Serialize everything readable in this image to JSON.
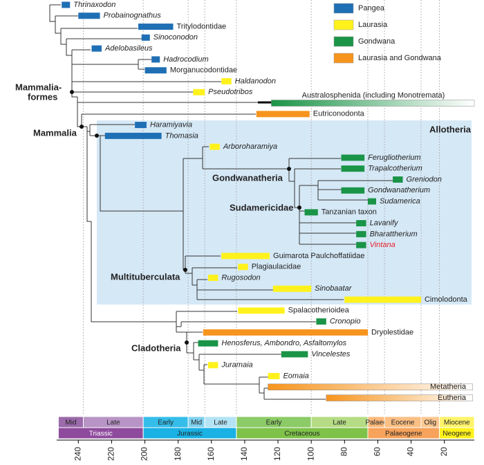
{
  "chart_data": {
    "type": "phylogeny",
    "xlim": [
      253,
      2
    ],
    "xticks": [
      240,
      220,
      200,
      180,
      160,
      140,
      120,
      100,
      80,
      60,
      40,
      20
    ],
    "regions": [
      {
        "name": "Pangea",
        "color": "#1f6fb5"
      },
      {
        "name": "Laurasia",
        "color": "#fff21c"
      },
      {
        "name": "Gondwana",
        "color": "#1a9447"
      },
      {
        "name": "Laurasia and Gondwana",
        "color": "#f7941d"
      }
    ],
    "taxa": [
      {
        "name": "Thrinaxodon",
        "region": 0,
        "range": [
          250,
          245
        ],
        "italic": true
      },
      {
        "name": "Probainognathus",
        "region": 0,
        "range": [
          240,
          227
        ],
        "italic": true
      },
      {
        "name": "Tritylodontidae",
        "region": 0,
        "range": [
          204,
          183
        ]
      },
      {
        "name": "Sinoconodon",
        "region": 0,
        "range": [
          202,
          197
        ],
        "italic": true
      },
      {
        "name": "Adelobasileus",
        "region": 0,
        "range": [
          232,
          226
        ],
        "italic": true
      },
      {
        "name": "Hadrocodium",
        "region": 0,
        "range": [
          196,
          191
        ],
        "italic": true
      },
      {
        "name": "Morganucodontidae",
        "region": 0,
        "range": [
          200,
          187
        ]
      },
      {
        "name": "Haldanodon",
        "region": 1,
        "range": [
          154,
          148
        ],
        "italic": true
      },
      {
        "name": "Pseudotribos",
        "region": 1,
        "range": [
          171,
          164
        ],
        "italic": true
      },
      {
        "name": "Australosphenida (including Monotremata)",
        "region": 2,
        "range": [
          124,
          2
        ],
        "fade": true
      },
      {
        "name": "Eutriconodonta",
        "region": 3,
        "range": [
          133,
          101
        ]
      },
      {
        "name": "Haramiyavia",
        "region": 0,
        "range": [
          206,
          199
        ],
        "italic": true
      },
      {
        "name": "Thomasia",
        "region": 0,
        "range": [
          224,
          190
        ],
        "italic": true
      },
      {
        "name": "Arboroharamiya",
        "region": 1,
        "range": [
          161,
          155
        ],
        "italic": true
      },
      {
        "name": "Ferugliotherium",
        "region": 2,
        "range": [
          82,
          68
        ],
        "italic": true
      },
      {
        "name": "Trapalcotherium",
        "region": 2,
        "range": [
          82,
          68
        ],
        "italic": true
      },
      {
        "name": "Greniodon",
        "region": 2,
        "range": [
          51,
          45
        ],
        "italic": true
      },
      {
        "name": "Gondwanatherium",
        "region": 2,
        "range": [
          82,
          68
        ],
        "italic": true
      },
      {
        "name": "Sudamerica",
        "region": 2,
        "range": [
          66,
          61
        ],
        "italic": true
      },
      {
        "name": "Tanzanian taxon",
        "region": 2,
        "range": [
          104,
          96
        ]
      },
      {
        "name": "Lavanify",
        "region": 2,
        "range": [
          73,
          67
        ],
        "italic": true
      },
      {
        "name": "Bharattherium",
        "region": 2,
        "range": [
          73,
          67
        ],
        "italic": true
      },
      {
        "name": "Vintana",
        "region": 2,
        "range": [
          73,
          67
        ],
        "italic": true,
        "label_color": "#e8202a"
      },
      {
        "name": "Guimarota Paulchoffatiidae",
        "region": 1,
        "range": [
          154,
          125
        ]
      },
      {
        "name": "Plagiaulacidae",
        "region": 1,
        "range": [
          144,
          138
        ]
      },
      {
        "name": "Rugosodon",
        "region": 1,
        "range": [
          162,
          156
        ],
        "italic": true
      },
      {
        "name": "Sinobaatar",
        "region": 1,
        "range": [
          123,
          100
        ],
        "italic": true
      },
      {
        "name": "Cimolodonta",
        "region": 1,
        "range": [
          80,
          34
        ]
      },
      {
        "name": "Spalacotherioidea",
        "region": 1,
        "range": [
          144,
          116
        ]
      },
      {
        "name": "Cronopio",
        "region": 2,
        "range": [
          97,
          91
        ],
        "italic": true
      },
      {
        "name": "Dryolestidae",
        "region": 3,
        "range": [
          165,
          66
        ]
      },
      {
        "name": "Henosferus, Ambondro, Asfaltomylos",
        "region": 2,
        "range": [
          168,
          156
        ],
        "italic": true
      },
      {
        "name": "Vincelestes",
        "region": 2,
        "range": [
          118,
          102
        ],
        "italic": true
      },
      {
        "name": "Juramaia",
        "region": 1,
        "range": [
          162,
          156
        ],
        "italic": true
      },
      {
        "name": "Eomaia",
        "region": 1,
        "range": [
          126,
          119
        ],
        "italic": true
      },
      {
        "name": "Metatheria",
        "region": 3,
        "range": [
          126,
          3
        ],
        "fade": true
      },
      {
        "name": "Eutheria",
        "region": 3,
        "range": [
          91,
          3
        ],
        "fade": true
      }
    ],
    "groups": [
      "Mammalia-",
      "formes",
      "Mammalia",
      "Allotheria",
      "Gondwanatheria",
      "Sudamericidae",
      "Multituberculata",
      "Cladotheria"
    ],
    "timescale": {
      "epochs": [
        {
          "name": "Mid",
          "start": 252,
          "end": 237,
          "color": "#9b6bab"
        },
        {
          "name": "Late",
          "start": 237,
          "end": 201,
          "color": "#b894c6"
        },
        {
          "name": "Early",
          "start": 201,
          "end": 174,
          "color": "#35bde9"
        },
        {
          "name": "Mid",
          "start": 174,
          "end": 164,
          "color": "#80d2ef"
        },
        {
          "name": "Late",
          "start": 164,
          "end": 145,
          "color": "#b3e3f4"
        },
        {
          "name": "Early",
          "start": 145,
          "end": 100,
          "color": "#8ccb67"
        },
        {
          "name": "Late",
          "start": 100,
          "end": 66,
          "color": "#b5dc84"
        },
        {
          "name": "Palaeo",
          "start": 66,
          "end": 56,
          "color": "#fbb97c"
        },
        {
          "name": "Eocene",
          "start": 56,
          "end": 34,
          "color": "#fbbf84"
        },
        {
          "name": "Olig",
          "start": 34,
          "end": 23,
          "color": "#fcc790"
        },
        {
          "name": "Miocene",
          "start": 23,
          "end": 2,
          "color": "#fff36b"
        }
      ],
      "periods": [
        {
          "name": "Triassic",
          "start": 252,
          "end": 201,
          "color": "#8e4a9c"
        },
        {
          "name": "Jurassic",
          "start": 201,
          "end": 145,
          "color": "#1ab1e4"
        },
        {
          "name": "Cretaceous",
          "start": 145,
          "end": 66,
          "color": "#7fc24a"
        },
        {
          "name": "Palaeogene",
          "start": 66,
          "end": 23,
          "color": "#f7a35b"
        },
        {
          "name": "Neogene",
          "start": 23,
          "end": 2,
          "color": "#fff21c"
        }
      ]
    }
  }
}
